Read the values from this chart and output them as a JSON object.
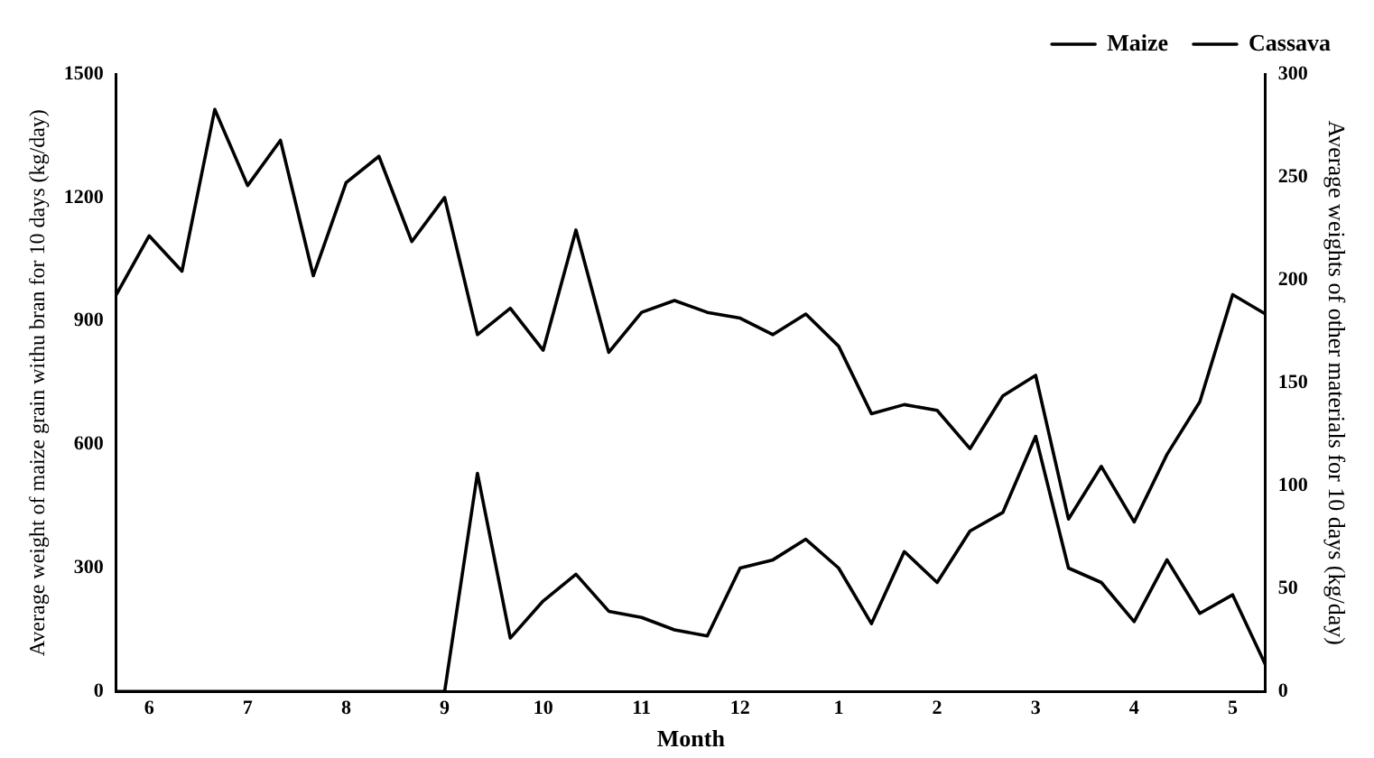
{
  "chart_data": {
    "type": "line",
    "xlabel": "Month",
    "ylabel": "Average weight of maize grain withu bran for 10 days (kg/day)",
    "y2label": "Average weights of other materials for 10 days (kg/day)",
    "categories": [
      null,
      "6",
      null,
      null,
      "7",
      null,
      null,
      "8",
      null,
      null,
      "9",
      null,
      null,
      "10",
      null,
      null,
      "11",
      null,
      null,
      "12",
      null,
      null,
      "1",
      null,
      null,
      "2",
      null,
      null,
      "3",
      null,
      null,
      "4",
      null,
      null,
      "5",
      null
    ],
    "series": [
      {
        "name": "Maize",
        "color": "#000000",
        "values": [
          964,
          1107,
          1021,
          1414,
          1229,
          1339,
          1010,
          1236,
          1300,
          1093,
          1200,
          867,
          931,
          829,
          1121,
          824,
          921,
          950,
          921,
          907,
          867,
          917,
          839,
          675,
          697,
          683,
          590,
          718,
          768,
          419,
          547,
          412,
          576,
          704,
          964,
          917
        ]
      },
      {
        "name": "Cassava",
        "color": "#000000",
        "axis": "y2",
        "values": [
          0,
          0,
          0,
          0,
          0,
          0,
          0,
          0,
          0,
          0,
          0,
          106,
          26,
          44,
          57,
          39,
          36,
          30,
          27,
          60,
          64,
          74,
          60,
          33,
          68,
          53,
          78,
          87,
          124,
          60,
          53,
          34,
          64,
          38,
          47,
          13
        ]
      }
    ],
    "ylim": [
      0,
      1500
    ],
    "yticks": [
      0,
      300,
      600,
      900,
      1200,
      1500
    ],
    "y2lim": [
      0,
      300
    ],
    "y2ticks": [
      0,
      50,
      100,
      150,
      200,
      250,
      300
    ],
    "grid": false,
    "legend": "top right",
    "marker": "none",
    "line_style": "solid"
  }
}
